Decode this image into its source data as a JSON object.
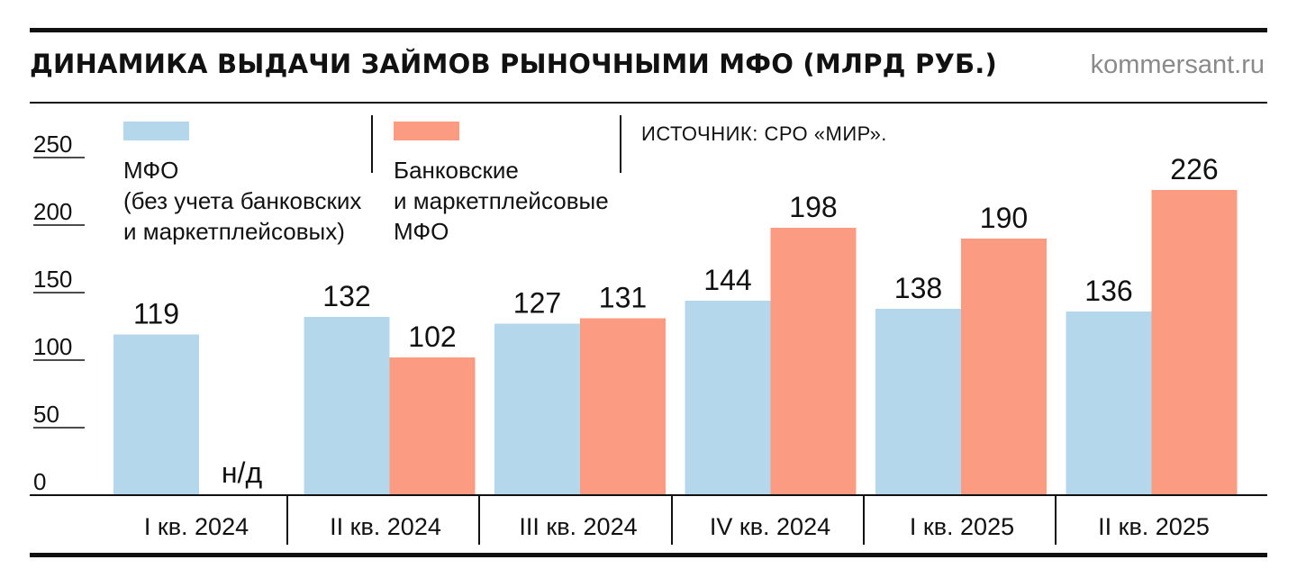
{
  "header": {
    "title": "ДИНАМИКА ВЫДАЧИ ЗАЙМОВ РЫНОЧНЫМИ МФО (МЛРД РУБ.)",
    "site": "kommersant.ru"
  },
  "source": "ИСТОЧНИК: СРО «МИР».",
  "colors": {
    "series_a": "#b5d7ec",
    "series_b": "#fb9b82"
  },
  "chart_data": {
    "type": "bar",
    "categories": [
      "I кв. 2024",
      "II кв. 2024",
      "III кв. 2024",
      "IV кв. 2024",
      "I кв. 2025",
      "II кв. 2025"
    ],
    "series": [
      {
        "name": "МФО\n(без учета банковских\nи маркетплейсовых)",
        "values": [
          119,
          132,
          127,
          144,
          138,
          136
        ]
      },
      {
        "name": "Банковские\nи маркетплейсовые\nМФО",
        "values": [
          null,
          102,
          131,
          198,
          190,
          226
        ]
      }
    ],
    "missing_label": "н/д",
    "yticks": [
      0,
      50,
      100,
      150,
      200,
      250
    ],
    "ylim": [
      0,
      250
    ],
    "title": "ДИНАМИКА ВЫДАЧИ ЗАЙМОВ РЫНОЧНЫМИ МФО (МЛРД РУБ.)",
    "xlabel": "",
    "ylabel": ""
  }
}
